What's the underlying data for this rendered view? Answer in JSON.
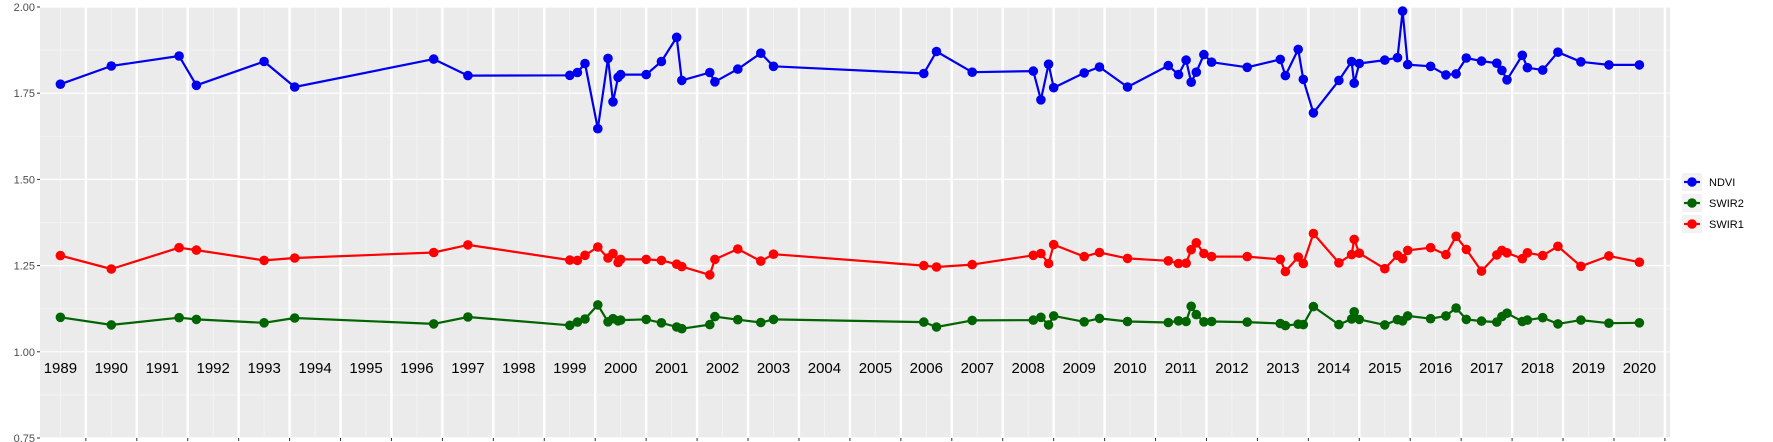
{
  "chart_data": {
    "type": "line",
    "title": "",
    "xlabel": "",
    "ylabel": "",
    "ylim": [
      0.75,
      2.0
    ],
    "xlim": [
      1988.6,
      2020.6
    ],
    "yticks": [
      0.75,
      1.0,
      1.25,
      1.5,
      1.75,
      2.0
    ],
    "ytick_labels": [
      "0.75",
      "1.00",
      "1.25",
      "1.50",
      "1.75",
      "2.00"
    ],
    "year_labels": [
      "1989",
      "1990",
      "1991",
      "1992",
      "1993",
      "1994",
      "1995",
      "1996",
      "1997",
      "1998",
      "1999",
      "2000",
      "2001",
      "2002",
      "2003",
      "2004",
      "2005",
      "2006",
      "2007",
      "2008",
      "2009",
      "2010",
      "2011",
      "2012",
      "2013",
      "2014",
      "2015",
      "2016",
      "2017",
      "2018",
      "2019",
      "2020"
    ],
    "grid": true,
    "background": "#ebebeb",
    "legend_position": "right",
    "x": [
      1989.0,
      1990.0,
      1991.33,
      1991.67,
      1993.0,
      1993.6,
      1996.33,
      1997.0,
      1999.0,
      1999.15,
      1999.3,
      1999.55,
      1999.75,
      1999.85,
      1999.95,
      2000.0,
      2000.5,
      2000.8,
      2001.1,
      2001.2,
      2001.75,
      2001.85,
      2002.3,
      2002.75,
      2003.0,
      2005.95,
      2006.2,
      2006.9,
      2008.1,
      2008.25,
      2008.4,
      2008.5,
      2009.1,
      2009.4,
      2009.95,
      2010.75,
      2010.95,
      2011.1,
      2011.2,
      2011.3,
      2011.45,
      2011.6,
      2012.3,
      2012.95,
      2013.05,
      2013.3,
      2013.4,
      2013.6,
      2014.1,
      2014.35,
      2014.4,
      2014.5,
      2015.0,
      2015.25,
      2015.35,
      2015.45,
      2015.9,
      2016.2,
      2016.4,
      2016.6,
      2016.9,
      2017.2,
      2017.3,
      2017.4,
      2017.7,
      2017.8,
      2018.1,
      2018.4,
      2018.85,
      2019.4,
      2020.0
    ],
    "series": [
      {
        "name": "NDVI",
        "color": "#0000ee",
        "values": [
          1.776,
          1.829,
          1.858,
          1.773,
          1.842,
          1.768,
          1.849,
          1.801,
          1.802,
          1.81,
          1.836,
          1.647,
          1.851,
          1.725,
          1.796,
          1.804,
          1.804,
          1.842,
          1.912,
          1.787,
          1.81,
          1.783,
          1.82,
          1.866,
          1.828,
          1.807,
          1.871,
          1.811,
          1.814,
          1.731,
          1.834,
          1.766,
          1.809,
          1.826,
          1.768,
          1.83,
          1.804,
          1.846,
          1.782,
          1.811,
          1.862,
          1.84,
          1.825,
          1.848,
          1.801,
          1.877,
          1.79,
          1.693,
          1.787,
          1.842,
          1.779,
          1.836,
          1.846,
          1.853,
          1.988,
          1.833,
          1.828,
          1.803,
          1.806,
          1.852,
          1.843,
          1.837,
          1.816,
          1.789,
          1.86,
          1.824,
          1.817,
          1.869,
          1.841,
          1.832,
          1.832
        ]
      },
      {
        "name": "SWIR2",
        "color": "#006400",
        "values": [
          1.1,
          1.078,
          1.099,
          1.094,
          1.084,
          1.098,
          1.081,
          1.101,
          1.077,
          1.086,
          1.095,
          1.136,
          1.087,
          1.096,
          1.09,
          1.092,
          1.094,
          1.084,
          1.072,
          1.067,
          1.079,
          1.102,
          1.093,
          1.085,
          1.094,
          1.086,
          1.072,
          1.091,
          1.092,
          1.1,
          1.078,
          1.104,
          1.087,
          1.097,
          1.088,
          1.085,
          1.09,
          1.088,
          1.132,
          1.108,
          1.087,
          1.088,
          1.086,
          1.082,
          1.076,
          1.08,
          1.079,
          1.131,
          1.079,
          1.095,
          1.116,
          1.094,
          1.078,
          1.093,
          1.09,
          1.104,
          1.096,
          1.104,
          1.127,
          1.094,
          1.089,
          1.086,
          1.102,
          1.112,
          1.088,
          1.092,
          1.099,
          1.081,
          1.092,
          1.083,
          1.084
        ]
      },
      {
        "name": "SWIR1",
        "color": "#ff0000",
        "values": [
          1.279,
          1.24,
          1.302,
          1.295,
          1.265,
          1.272,
          1.288,
          1.31,
          1.266,
          1.265,
          1.28,
          1.304,
          1.272,
          1.285,
          1.259,
          1.268,
          1.268,
          1.265,
          1.254,
          1.247,
          1.223,
          1.268,
          1.298,
          1.263,
          1.283,
          1.25,
          1.246,
          1.253,
          1.28,
          1.285,
          1.256,
          1.311,
          1.276,
          1.288,
          1.271,
          1.264,
          1.256,
          1.257,
          1.296,
          1.316,
          1.285,
          1.276,
          1.276,
          1.268,
          1.233,
          1.275,
          1.256,
          1.343,
          1.258,
          1.282,
          1.326,
          1.286,
          1.241,
          1.28,
          1.27,
          1.294,
          1.302,
          1.282,
          1.335,
          1.297,
          1.234,
          1.281,
          1.294,
          1.287,
          1.27,
          1.287,
          1.279,
          1.306,
          1.248,
          1.278,
          1.26
        ]
      }
    ]
  }
}
